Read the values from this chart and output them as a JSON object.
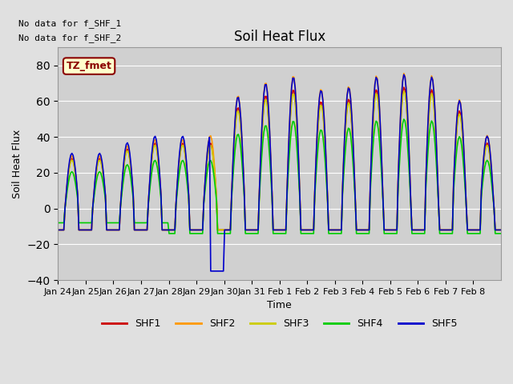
{
  "title": "Soil Heat Flux",
  "ylabel": "Soil Heat Flux",
  "xlabel": "Time",
  "annotation_line1": "No data for f_SHF_1",
  "annotation_line2": "No data for f_SHF_2",
  "tz_label": "TZ_fmet",
  "ylim": [
    -40,
    90
  ],
  "yticks": [
    -40,
    -20,
    0,
    20,
    40,
    60,
    80
  ],
  "bg_color": "#e0e0e0",
  "plot_bg": "#d0d0d0",
  "colors": {
    "SHF1": "#cc0000",
    "SHF2": "#ff9900",
    "SHF3": "#cccc00",
    "SHF4": "#00cc00",
    "SHF5": "#0000cc"
  },
  "x_tick_labels": [
    "Jan 24",
    "Jan 25",
    "Jan 26",
    "Jan 27",
    "Jan 28",
    "Jan 29",
    "Jan 30",
    "Jan 31",
    "Feb 1",
    "Feb 2",
    "Feb 3",
    "Feb 4",
    "Feb 5",
    "Feb 6",
    "Feb 7",
    "Feb 8"
  ],
  "figsize": [
    6.4,
    4.8
  ],
  "dpi": 100
}
